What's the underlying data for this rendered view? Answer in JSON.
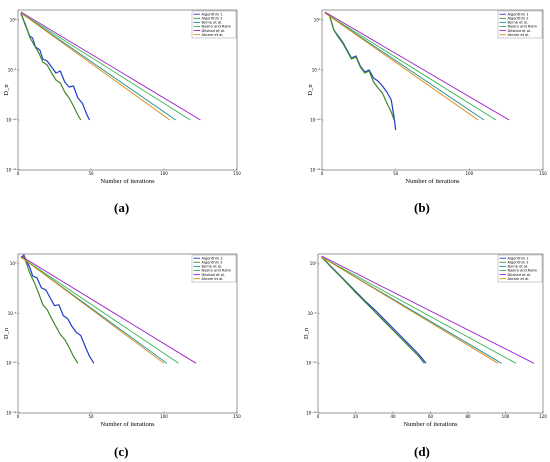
{
  "legend_labels": [
    "Algorithm 1",
    "Algorithm 2",
    "Byrne et al.",
    "Nasiro and Rahn",
    "Dilshad et al.",
    "Akram et al."
  ],
  "series_colors": [
    "#1f3cc8",
    "#3f8a2a",
    "#1f8f8f",
    "#37b24d",
    "#9a1fc7",
    "#d98a18"
  ],
  "captions": {
    "a": "(a)",
    "b": "(b)",
    "c": "(c)",
    "d": "(d)"
  },
  "chart_data": [
    {
      "type": "line",
      "panel": "a",
      "xlabel": "Number of iterations",
      "ylabel": "D_n",
      "xlim": [
        0,
        150
      ],
      "ylim": [
        -15,
        1
      ],
      "yscale": "log",
      "grid": false,
      "legend": "top-right",
      "xticks": [
        "0",
        "50",
        "100",
        "150"
      ],
      "yticks": [
        {
          "v": 0,
          "label": "10⁰"
        },
        {
          "v": -5,
          "label": "10⁻⁵"
        },
        {
          "v": -10,
          "label": "10⁻¹⁰"
        },
        {
          "v": -15,
          "label": "10⁻¹⁵"
        }
      ],
      "series": [
        {
          "name": "Algorithm 1",
          "x": [
            2,
            5,
            8,
            10,
            12,
            15,
            17,
            20,
            23,
            26,
            29,
            32,
            35,
            38,
            41,
            44,
            47,
            49
          ],
          "y": [
            0.7,
            -0.5,
            -1.6,
            -1.8,
            -2.7,
            -3.0,
            -3.9,
            -4.1,
            -4.7,
            -5.3,
            -5.1,
            -6.2,
            -6.7,
            -6.6,
            -7.8,
            -8.3,
            -9.4,
            -10.0
          ]
        },
        {
          "name": "Algorithm 2",
          "x": [
            2,
            5,
            8,
            11,
            14,
            17,
            20,
            23,
            26,
            29,
            32,
            35,
            38,
            41,
            43
          ],
          "y": [
            0.6,
            -0.4,
            -1.7,
            -2.5,
            -3.2,
            -4.2,
            -4.5,
            -5.3,
            -6.0,
            -6.3,
            -7.2,
            -7.8,
            -8.6,
            -9.5,
            -10.0
          ]
        },
        {
          "name": "Byrne et al.",
          "x": [
            2,
            108
          ],
          "y": [
            0.7,
            -10.0
          ]
        },
        {
          "name": "Nasiro and Rahn",
          "x": [
            2,
            118
          ],
          "y": [
            0.7,
            -10.0
          ]
        },
        {
          "name": "Dilshad et al.",
          "x": [
            2,
            125
          ],
          "y": [
            0.8,
            -10.0
          ]
        },
        {
          "name": "Akram et al.",
          "x": [
            2,
            104
          ],
          "y": [
            0.7,
            -10.0
          ]
        }
      ]
    },
    {
      "type": "line",
      "panel": "b",
      "xlabel": "Number of iterations",
      "ylabel": "D_n",
      "xlim": [
        0,
        150
      ],
      "ylim": [
        -15,
        1
      ],
      "yscale": "log",
      "grid": false,
      "legend": "top-right",
      "xticks": [
        "0",
        "50",
        "100",
        "150"
      ],
      "yticks": [
        {
          "v": 0,
          "label": "10⁰"
        },
        {
          "v": -5,
          "label": "10⁻⁵"
        },
        {
          "v": -10,
          "label": "10⁻¹⁰"
        },
        {
          "v": -15,
          "label": "10⁻¹⁵"
        }
      ],
      "series": [
        {
          "name": "Algorithm 1",
          "x": [
            2,
            5,
            8,
            11,
            14,
            17,
            20,
            23,
            26,
            29,
            32,
            35,
            38,
            41,
            44,
            47,
            49,
            50
          ],
          "y": [
            0.7,
            0.5,
            -1.0,
            -1.6,
            -2.2,
            -3.0,
            -3.8,
            -3.6,
            -4.6,
            -5.2,
            -5.0,
            -5.8,
            -6.1,
            -6.6,
            -7.2,
            -8.0,
            -9.8,
            -11.0
          ]
        },
        {
          "name": "Algorithm 2",
          "x": [
            2,
            5,
            8,
            11,
            14,
            17,
            20,
            23,
            26,
            29,
            32,
            35,
            38,
            41,
            44,
            47,
            49
          ],
          "y": [
            0.7,
            0.5,
            -1.0,
            -1.7,
            -2.3,
            -3.1,
            -3.9,
            -3.7,
            -4.7,
            -5.3,
            -5.1,
            -6.2,
            -6.8,
            -7.3,
            -8.3,
            -9.2,
            -10.0
          ]
        },
        {
          "name": "Byrne et al.",
          "x": [
            2,
            110
          ],
          "y": [
            0.7,
            -10.0
          ]
        },
        {
          "name": "Nasiro and Rahn",
          "x": [
            2,
            118
          ],
          "y": [
            0.7,
            -10.0
          ]
        },
        {
          "name": "Dilshad et al.",
          "x": [
            2,
            127
          ],
          "y": [
            0.8,
            -10.0
          ]
        },
        {
          "name": "Akram et al.",
          "x": [
            2,
            106
          ],
          "y": [
            0.7,
            -10.0
          ]
        }
      ]
    },
    {
      "type": "line",
      "panel": "c",
      "xlabel": "Number of iterations",
      "ylabel": "D_n",
      "xlim": [
        0,
        150
      ],
      "ylim": [
        -15,
        1
      ],
      "yscale": "log",
      "grid": false,
      "legend": "top-right",
      "xticks": [
        "0",
        "50",
        "100",
        "150"
      ],
      "yticks": [
        {
          "v": 0,
          "label": "10⁰"
        },
        {
          "v": -5,
          "label": "10⁻⁵"
        },
        {
          "v": -10,
          "label": "10⁻¹⁰"
        },
        {
          "v": -15,
          "label": "10⁻¹⁵"
        }
      ],
      "series": [
        {
          "name": "Algorithm 1",
          "x": [
            2,
            4,
            6,
            8,
            10,
            13,
            16,
            19,
            22,
            25,
            28,
            31,
            34,
            37,
            40,
            43,
            46,
            49,
            52
          ],
          "y": [
            0.6,
            0.9,
            0.2,
            -0.3,
            -1.2,
            -1.4,
            -2.4,
            -2.6,
            -3.4,
            -4.2,
            -4.1,
            -5.2,
            -5.5,
            -6.3,
            -6.9,
            -7.2,
            -8.3,
            -9.3,
            -10.0
          ]
        },
        {
          "name": "Algorithm 2",
          "x": [
            2,
            4,
            6,
            8,
            11,
            14,
            17,
            20,
            23,
            26,
            29,
            32,
            35,
            38,
            41
          ],
          "y": [
            0.6,
            0.8,
            0.0,
            -0.9,
            -1.8,
            -2.9,
            -4.1,
            -4.6,
            -5.5,
            -6.3,
            -7.1,
            -7.6,
            -8.4,
            -9.3,
            -10.0
          ]
        },
        {
          "name": "Byrne et al.",
          "x": [
            2,
            102
          ],
          "y": [
            0.7,
            -10.0
          ]
        },
        {
          "name": "Nasiro and Rahn",
          "x": [
            2,
            110
          ],
          "y": [
            0.7,
            -10.0
          ]
        },
        {
          "name": "Dilshad et al.",
          "x": [
            2,
            122
          ],
          "y": [
            0.8,
            -10.0
          ]
        },
        {
          "name": "Akram et al.",
          "x": [
            2,
            100
          ],
          "y": [
            0.7,
            -10.0
          ]
        }
      ]
    },
    {
      "type": "line",
      "panel": "d",
      "xlabel": "Number of iterations",
      "ylabel": "D_n",
      "xlim": [
        0,
        125
      ],
      "ylim": [
        -15,
        1
      ],
      "yscale": "log",
      "grid": false,
      "legend": "top-right",
      "xticks": [
        "0",
        "20",
        "40",
        "60",
        "80",
        "100",
        "120"
      ],
      "yticks": [
        {
          "v": 0,
          "label": "10⁰"
        },
        {
          "v": -5,
          "label": "10⁻⁵"
        },
        {
          "v": -10,
          "label": "10⁻¹⁰"
        },
        {
          "v": -15,
          "label": "10⁻¹⁵"
        }
      ],
      "series": [
        {
          "name": "Algorithm 1",
          "x": [
            2,
            8,
            14,
            20,
            26,
            32,
            38,
            44,
            50,
            56,
            60
          ],
          "y": [
            0.7,
            -0.4,
            -1.5,
            -2.6,
            -3.7,
            -4.7,
            -5.8,
            -6.9,
            -8.0,
            -9.1,
            -10.0
          ]
        },
        {
          "name": "Algorithm 2",
          "x": [
            2,
            8,
            14,
            20,
            26,
            32,
            38,
            44,
            50,
            56,
            59
          ],
          "y": [
            0.7,
            -0.45,
            -1.55,
            -2.7,
            -3.8,
            -4.9,
            -6.0,
            -7.1,
            -8.2,
            -9.3,
            -10.0
          ]
        },
        {
          "name": "Byrne et al.",
          "x": [
            2,
            102
          ],
          "y": [
            0.7,
            -10.0
          ]
        },
        {
          "name": "Nasiro and Rahn",
          "x": [
            2,
            110
          ],
          "y": [
            0.7,
            -10.0
          ]
        },
        {
          "name": "Dilshad et al.",
          "x": [
            2,
            120
          ],
          "y": [
            0.8,
            -10.0
          ]
        },
        {
          "name": "Akram et al.",
          "x": [
            2,
            100
          ],
          "y": [
            0.7,
            -10.0
          ]
        }
      ]
    }
  ]
}
